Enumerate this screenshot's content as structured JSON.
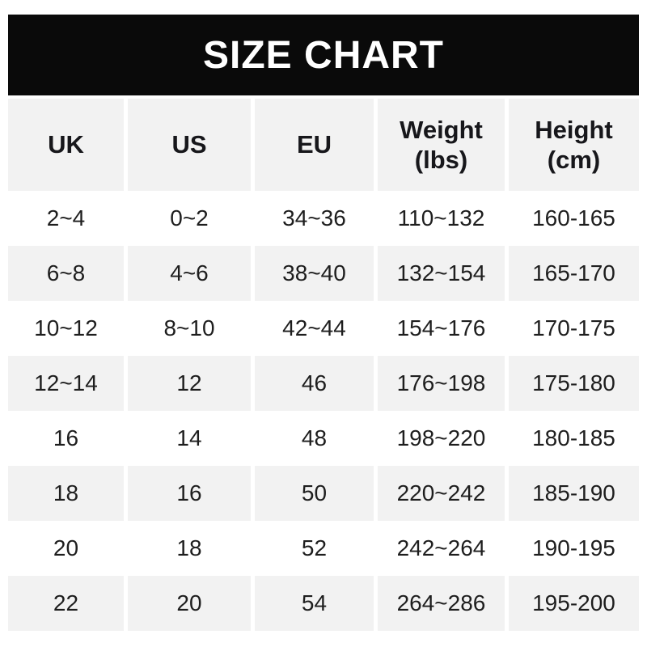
{
  "title": "SIZE CHART",
  "colors": {
    "banner_bg": "#0a0a0a",
    "banner_text": "#ffffff",
    "row_alt_bg": "#f2f2f2",
    "row_bg": "#ffffff",
    "text": "#1e1e1e"
  },
  "table": {
    "header": [
      {
        "id": "uk",
        "label": "UK"
      },
      {
        "id": "us",
        "label": "US"
      },
      {
        "id": "eu",
        "label": "EU"
      },
      {
        "id": "weight-lbs",
        "label": "Weight",
        "sub": "(lbs)"
      },
      {
        "id": "height-cm",
        "label": "Height",
        "sub": "(cm)"
      }
    ]
  },
  "chart_data": {
    "type": "table",
    "title": "SIZE CHART",
    "columns": [
      "UK",
      "US",
      "EU",
      "Weight (lbs)",
      "Height (cm)"
    ],
    "rows": [
      [
        "2~4",
        "0~2",
        "34~36",
        "110~132",
        "160-165"
      ],
      [
        "6~8",
        "4~6",
        "38~40",
        "132~154",
        "165-170"
      ],
      [
        "10~12",
        "8~10",
        "42~44",
        "154~176",
        "170-175"
      ],
      [
        "12~14",
        "12",
        "46",
        "176~198",
        "175-180"
      ],
      [
        "16",
        "14",
        "48",
        "198~220",
        "180-185"
      ],
      [
        "18",
        "16",
        "50",
        "220~242",
        "185-190"
      ],
      [
        "20",
        "18",
        "52",
        "242~264",
        "190-195"
      ],
      [
        "22",
        "20",
        "54",
        "264~286",
        "195-200"
      ]
    ]
  }
}
